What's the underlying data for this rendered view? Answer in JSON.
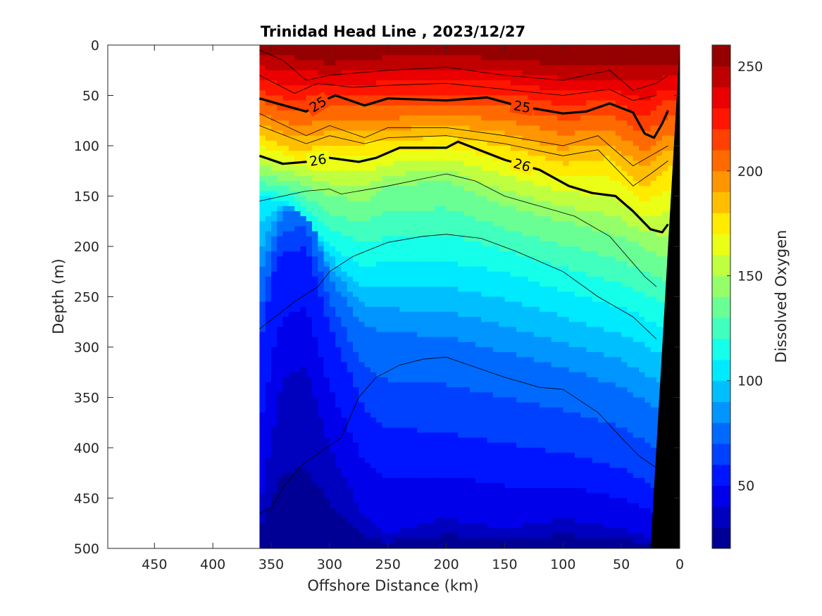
{
  "chart_data": {
    "type": "heatmap",
    "title": "Trinidad Head Line , 2023/12/27",
    "xlabel": "Offshore Distance (km)",
    "ylabel": "Depth (m)",
    "xlim": [
      490,
      0
    ],
    "ylim": [
      0,
      500
    ],
    "y_reversed": true,
    "x_reversed": true,
    "xticks": [
      450,
      400,
      350,
      300,
      250,
      200,
      150,
      100,
      50,
      0
    ],
    "yticks": [
      0,
      50,
      100,
      150,
      200,
      250,
      300,
      350,
      400,
      450,
      500
    ],
    "data_extent_km": [
      360,
      0
    ],
    "colorbar": {
      "label": "Dissolved Oxygen",
      "range": [
        20,
        260
      ],
      "ticks": [
        50,
        100,
        150,
        200,
        250
      ],
      "levels": 24,
      "colormap": "jet"
    },
    "oxygen_isolines_depth_m": [
      {
        "oxygen": 250,
        "points": [
          [
            360,
            10
          ],
          [
            330,
            12
          ],
          [
            300,
            18
          ],
          [
            250,
            12
          ],
          [
            200,
            10
          ],
          [
            150,
            14
          ],
          [
            100,
            20
          ],
          [
            50,
            22
          ],
          [
            20,
            18
          ],
          [
            10,
            20
          ]
        ]
      },
      {
        "oxygen": 220,
        "points": [
          [
            360,
            45
          ],
          [
            330,
            55
          ],
          [
            300,
            48
          ],
          [
            250,
            50
          ],
          [
            200,
            50
          ],
          [
            150,
            48
          ],
          [
            100,
            60
          ],
          [
            60,
            55
          ],
          [
            30,
            72
          ],
          [
            10,
            55
          ]
        ]
      },
      {
        "oxygen": 180,
        "points": [
          [
            360,
            90
          ],
          [
            330,
            105
          ],
          [
            300,
            100
          ],
          [
            250,
            96
          ],
          [
            200,
            90
          ],
          [
            150,
            100
          ],
          [
            100,
            118
          ],
          [
            60,
            112
          ],
          [
            30,
            140
          ],
          [
            10,
            120
          ]
        ]
      },
      {
        "oxygen": 140,
        "points": [
          [
            360,
            130
          ],
          [
            330,
            135
          ],
          [
            300,
            150
          ],
          [
            270,
            155
          ],
          [
            250,
            140
          ],
          [
            200,
            135
          ],
          [
            150,
            160
          ],
          [
            100,
            175
          ],
          [
            50,
            190
          ],
          [
            15,
            210
          ]
        ]
      },
      {
        "oxygen": 110,
        "points": [
          [
            360,
            148
          ],
          [
            330,
            160
          ],
          [
            300,
            200
          ],
          [
            270,
            220
          ],
          [
            250,
            215
          ],
          [
            200,
            215
          ],
          [
            150,
            225
          ],
          [
            100,
            245
          ],
          [
            50,
            260
          ],
          [
            15,
            280
          ]
        ]
      },
      {
        "oxygen": 80,
        "points": [
          [
            360,
            230
          ],
          [
            340,
            165
          ],
          [
            320,
            160
          ],
          [
            300,
            230
          ],
          [
            270,
            280
          ],
          [
            250,
            285
          ],
          [
            200,
            290
          ],
          [
            150,
            305
          ],
          [
            100,
            320
          ],
          [
            50,
            340
          ],
          [
            20,
            360
          ]
        ]
      },
      {
        "oxygen": 60,
        "points": [
          [
            360,
            300
          ],
          [
            345,
            210
          ],
          [
            320,
            200
          ],
          [
            300,
            280
          ],
          [
            270,
            360
          ],
          [
            250,
            380
          ],
          [
            200,
            385
          ],
          [
            150,
            395
          ],
          [
            100,
            405
          ],
          [
            50,
            420
          ],
          [
            20,
            440
          ]
        ]
      },
      {
        "oxygen": 40,
        "points": [
          [
            360,
            460
          ],
          [
            340,
            330
          ],
          [
            320,
            320
          ],
          [
            300,
            400
          ],
          [
            270,
            470
          ],
          [
            250,
            485
          ],
          [
            200,
            470
          ],
          [
            150,
            480
          ],
          [
            100,
            470
          ],
          [
            50,
            480
          ],
          [
            25,
            490
          ]
        ]
      }
    ],
    "density_contours": [
      {
        "label": "25",
        "points": [
          [
            360,
            53
          ],
          [
            345,
            58
          ],
          [
            320,
            66
          ],
          [
            305,
            55
          ],
          [
            295,
            50
          ],
          [
            270,
            60
          ],
          [
            250,
            53
          ],
          [
            200,
            55
          ],
          [
            165,
            52
          ],
          [
            140,
            60
          ],
          [
            100,
            68
          ],
          [
            80,
            66
          ],
          [
            60,
            58
          ],
          [
            40,
            67
          ],
          [
            30,
            88
          ],
          [
            22,
            92
          ],
          [
            15,
            78
          ],
          [
            10,
            65
          ]
        ]
      },
      {
        "label": "26",
        "points": [
          [
            360,
            110
          ],
          [
            340,
            118
          ],
          [
            320,
            116
          ],
          [
            300,
            112
          ],
          [
            275,
            116
          ],
          [
            260,
            112
          ],
          [
            240,
            102
          ],
          [
            200,
            102
          ],
          [
            190,
            96
          ],
          [
            150,
            114
          ],
          [
            120,
            124
          ],
          [
            95,
            140
          ],
          [
            75,
            147
          ],
          [
            55,
            150
          ],
          [
            40,
            165
          ],
          [
            25,
            183
          ],
          [
            15,
            186
          ],
          [
            10,
            178
          ]
        ]
      }
    ],
    "thin_contours": [
      [
        [
          360,
          5
        ],
        [
          340,
          15
        ],
        [
          320,
          35
        ],
        [
          300,
          30
        ],
        [
          250,
          25
        ],
        [
          200,
          22
        ],
        [
          150,
          30
        ],
        [
          100,
          35
        ],
        [
          80,
          30
        ],
        [
          60,
          25
        ],
        [
          40,
          45
        ],
        [
          20,
          38
        ],
        [
          10,
          30
        ]
      ],
      [
        [
          360,
          30
        ],
        [
          330,
          48
        ],
        [
          310,
          38
        ],
        [
          280,
          42
        ],
        [
          250,
          40
        ],
        [
          200,
          38
        ],
        [
          150,
          44
        ],
        [
          100,
          50
        ],
        [
          60,
          44
        ],
        [
          40,
          55
        ],
        [
          20,
          50
        ]
      ],
      [
        [
          360,
          68
        ],
        [
          320,
          90
        ],
        [
          300,
          80
        ],
        [
          270,
          92
        ],
        [
          250,
          82
        ],
        [
          200,
          82
        ],
        [
          150,
          90
        ],
        [
          100,
          100
        ],
        [
          70,
          90
        ],
        [
          40,
          120
        ],
        [
          25,
          110
        ],
        [
          10,
          100
        ]
      ],
      [
        [
          360,
          80
        ],
        [
          320,
          98
        ],
        [
          300,
          90
        ],
        [
          270,
          98
        ],
        [
          250,
          92
        ],
        [
          200,
          90
        ],
        [
          150,
          98
        ],
        [
          100,
          110
        ],
        [
          70,
          104
        ],
        [
          40,
          140
        ],
        [
          25,
          128
        ],
        [
          10,
          115
        ]
      ],
      [
        [
          360,
          155
        ],
        [
          340,
          150
        ],
        [
          320,
          145
        ],
        [
          300,
          143
        ],
        [
          290,
          148
        ],
        [
          250,
          140
        ],
        [
          200,
          128
        ],
        [
          175,
          135
        ],
        [
          150,
          150
        ],
        [
          120,
          160
        ],
        [
          90,
          170
        ],
        [
          60,
          190
        ],
        [
          30,
          230
        ],
        [
          20,
          240
        ]
      ],
      [
        [
          360,
          282
        ],
        [
          330,
          255
        ],
        [
          310,
          240
        ],
        [
          300,
          225
        ],
        [
          280,
          210
        ],
        [
          250,
          196
        ],
        [
          220,
          190
        ],
        [
          200,
          188
        ],
        [
          170,
          192
        ],
        [
          140,
          205
        ],
        [
          100,
          225
        ],
        [
          70,
          250
        ],
        [
          40,
          270
        ],
        [
          20,
          292
        ]
      ],
      [
        [
          360,
          465
        ],
        [
          350,
          460
        ],
        [
          340,
          440
        ],
        [
          325,
          418
        ],
        [
          300,
          398
        ],
        [
          290,
          390
        ],
        [
          275,
          350
        ],
        [
          260,
          330
        ],
        [
          240,
          318
        ],
        [
          220,
          312
        ],
        [
          200,
          310
        ],
        [
          180,
          318
        ],
        [
          150,
          330
        ],
        [
          120,
          340
        ],
        [
          100,
          342
        ],
        [
          70,
          365
        ],
        [
          50,
          390
        ],
        [
          35,
          408
        ],
        [
          20,
          420
        ]
      ]
    ],
    "bottom_terrain": [
      [
        0,
        0
      ],
      [
        25,
        500
      ],
      [
        0,
        500
      ]
    ]
  }
}
